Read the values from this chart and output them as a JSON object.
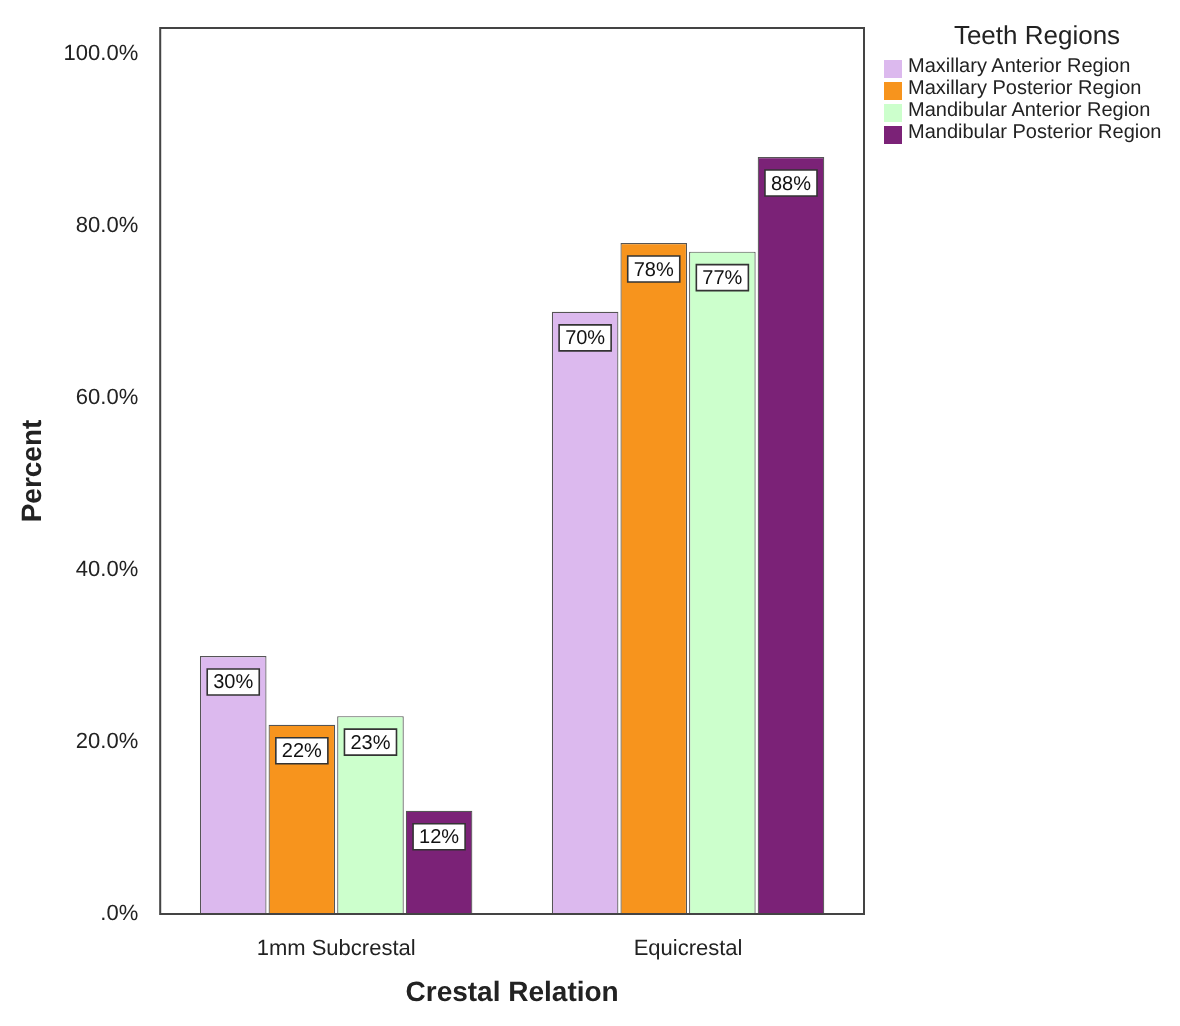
{
  "chart_data": {
    "type": "bar",
    "xlabel": "Crestal Relation",
    "ylabel": "Percent",
    "legend_title": "Teeth Regions",
    "legend": "top right",
    "grid": false,
    "categories": [
      "1mm Subcrestal",
      "Equicrestal"
    ],
    "ylim": [
      0,
      103
    ],
    "yticks": [
      {
        "value": 0,
        "label": ".0%"
      },
      {
        "value": 20,
        "label": "20.0%"
      },
      {
        "value": 40,
        "label": "40.0%"
      },
      {
        "value": 60,
        "label": "60.0%"
      },
      {
        "value": 80,
        "label": "80.0%"
      },
      {
        "value": 100,
        "label": "100.0%"
      }
    ],
    "series": [
      {
        "name": "Maxillary Anterior Region",
        "color": "#dcb9ee",
        "values": [
          30,
          70
        ],
        "value_labels": [
          "30%",
          "70%"
        ]
      },
      {
        "name": "Maxillary Posterior Region",
        "color": "#f7941d",
        "values": [
          22,
          78
        ],
        "value_labels": [
          "22%",
          "78%"
        ]
      },
      {
        "name": "Mandibular Anterior Region",
        "color": "#ccffcc",
        "values": [
          23,
          77
        ],
        "value_labels": [
          "23%",
          "77%"
        ]
      },
      {
        "name": "Mandibular Posterior Region",
        "color": "#7b2277",
        "values": [
          12,
          88
        ],
        "value_labels": [
          "12%",
          "88%"
        ]
      }
    ]
  }
}
